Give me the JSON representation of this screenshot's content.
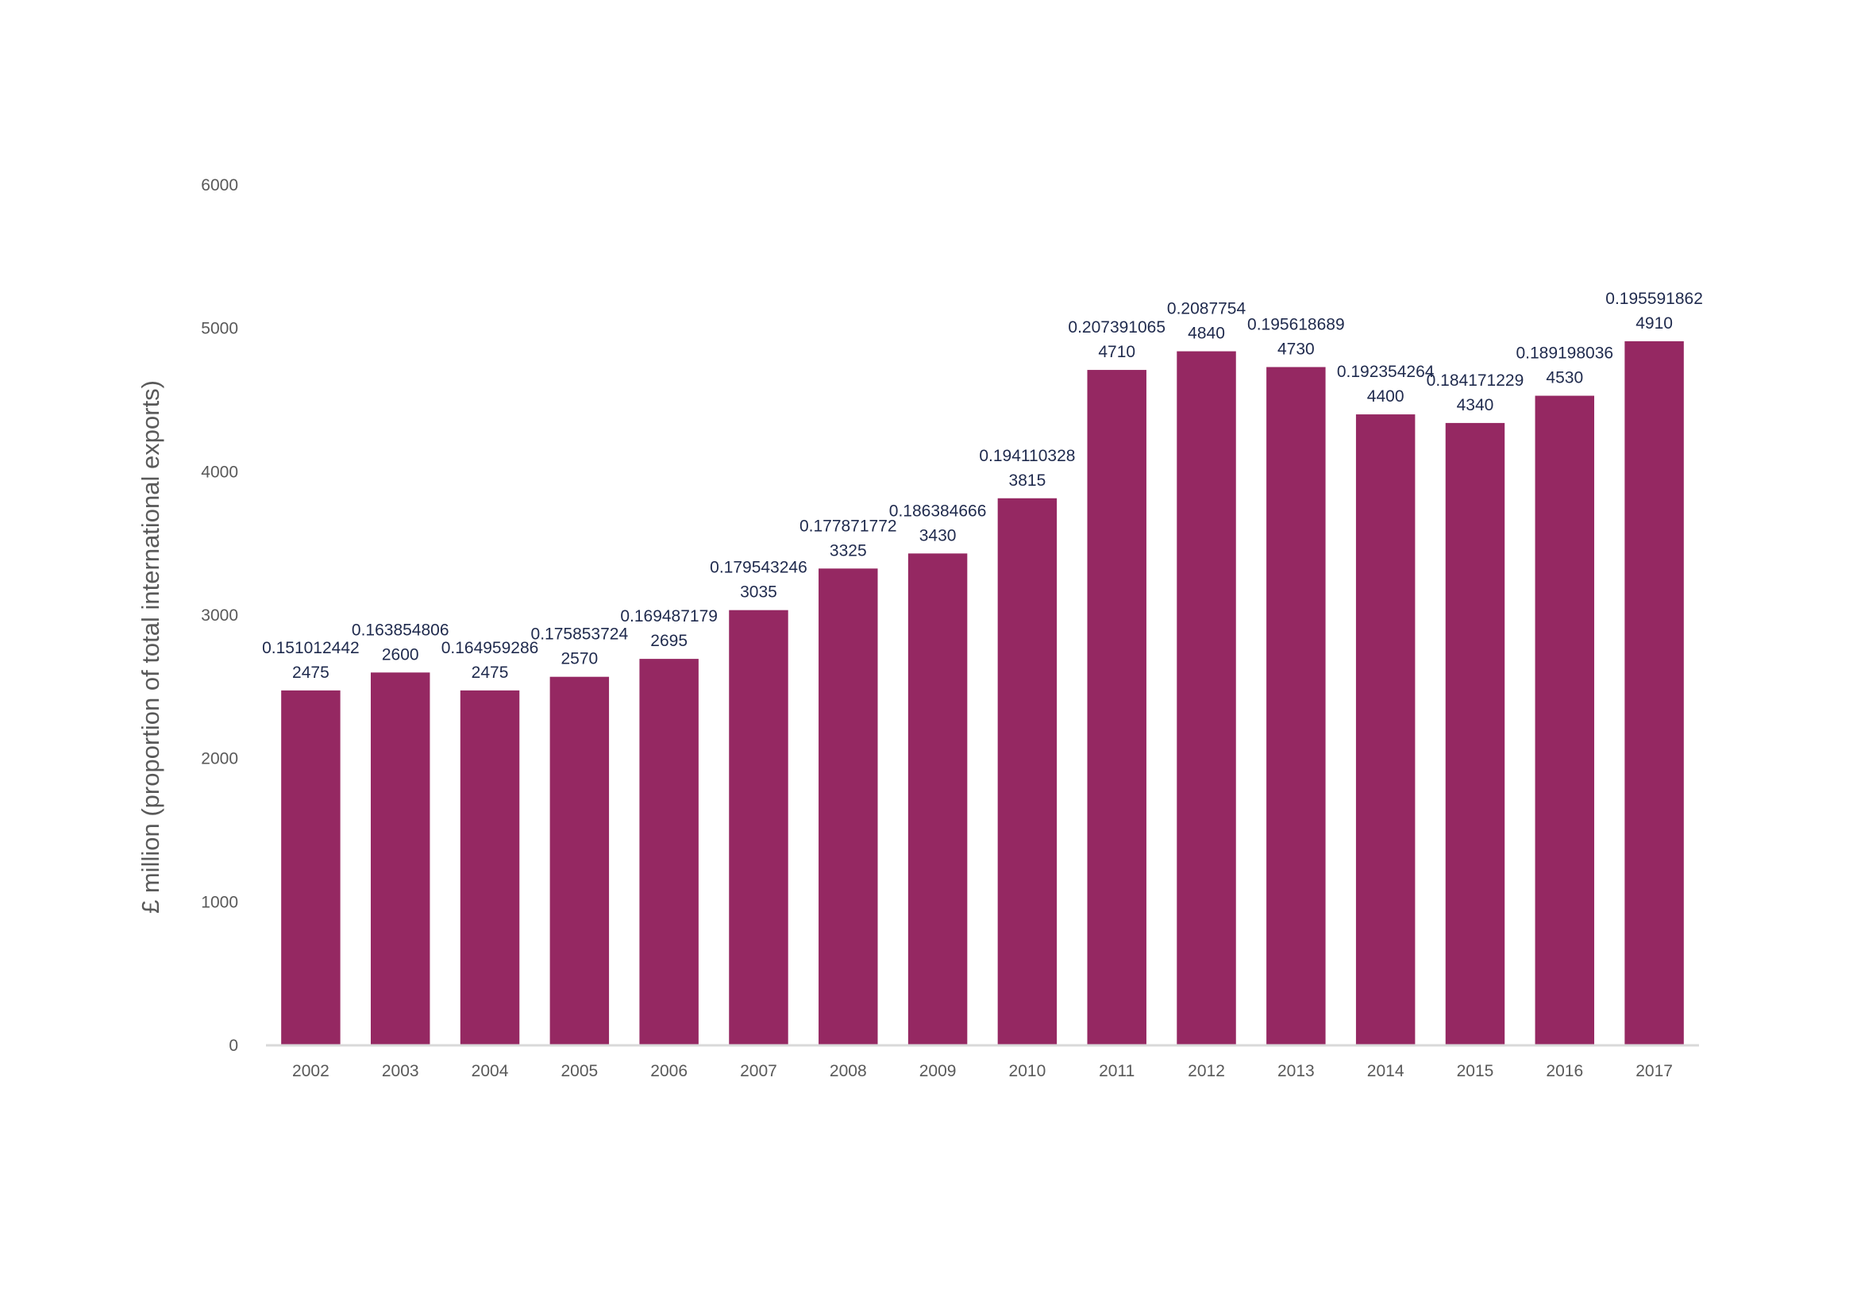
{
  "chart_data": {
    "type": "bar",
    "title": "",
    "xlabel": "",
    "ylabel": "£ million (proportion of total international exports)",
    "ylim": [
      0,
      6000
    ],
    "yticks": [
      0,
      1000,
      2000,
      3000,
      4000,
      5000,
      6000
    ],
    "grid": false,
    "legend": "none",
    "bar_color": "#952862",
    "axis_color": "#d9d9d9",
    "label_color": "#1f2a4d",
    "tick_color": "#595959",
    "categories": [
      "2002",
      "2003",
      "2004",
      "2005",
      "2006",
      "2007",
      "2008",
      "2009",
      "2010",
      "2011",
      "2012",
      "2013",
      "2014",
      "2015",
      "2016",
      "2017"
    ],
    "values": [
      2475,
      2600,
      2475,
      2570,
      2695,
      3035,
      3325,
      3430,
      3815,
      4710,
      4840,
      4730,
      4400,
      4340,
      4530,
      4910
    ],
    "proportions": [
      "0.151012442",
      "0.163854806",
      "0.164959286",
      "0.175853724",
      "0.169487179",
      "0.179543246",
      "0.177871772",
      "0.186384666",
      "0.194110328",
      "0.207391065",
      "0.2087754",
      "0.195618689",
      "0.192354264",
      "0.184171229",
      "0.189198036",
      "0.195591862"
    ]
  }
}
